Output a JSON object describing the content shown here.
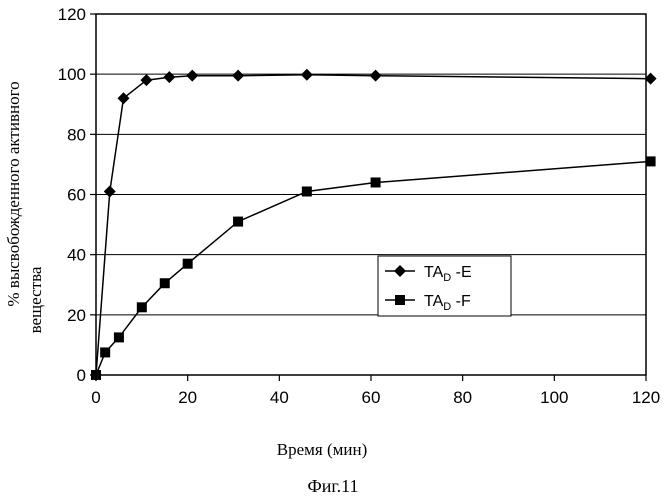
{
  "chart_data": {
    "type": "line",
    "xlabel": "Время (мин)",
    "ylabel_lines": [
      "% высвобожденного активного",
      "вещества"
    ],
    "caption": "Фиг.11",
    "x_ticks": [
      "0",
      "20",
      "40",
      "60",
      "80",
      "100",
      "120"
    ],
    "y_ticks": [
      "0",
      "20",
      "40",
      "60",
      "80",
      "100",
      "120"
    ],
    "xlim": [
      0,
      120
    ],
    "ylim": [
      0,
      120
    ],
    "grid": "horizontal",
    "legend_position": "center-right",
    "series": [
      {
        "legend_main": "TA",
        "legend_sub": "D",
        "legend_suffix": " -E",
        "marker": "diamond",
        "x": [
          0,
          3,
          6,
          11,
          16,
          21,
          31,
          46,
          61,
          121
        ],
        "y": [
          0,
          61,
          92,
          98,
          99,
          99.5,
          99.5,
          99.8,
          99.5,
          98.5
        ]
      },
      {
        "legend_main": "TA",
        "legend_sub": "D",
        "legend_suffix": " -F",
        "marker": "square",
        "x": [
          0,
          2,
          5,
          10,
          15,
          20,
          31,
          46,
          61,
          121
        ],
        "y": [
          0,
          7.5,
          12.5,
          22.5,
          30.5,
          37,
          51,
          61,
          64,
          71
        ]
      }
    ]
  }
}
